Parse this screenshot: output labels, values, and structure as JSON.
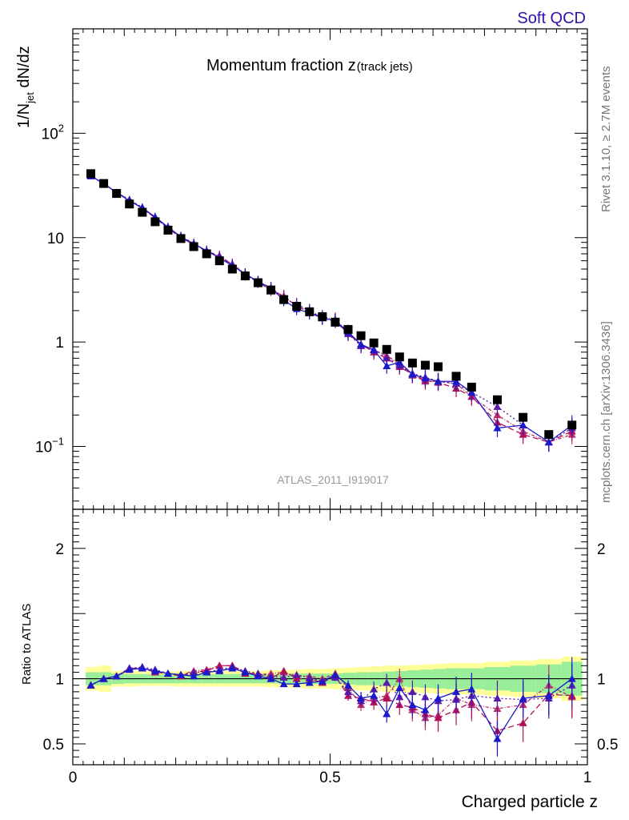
{
  "header": {
    "tag": "Soft QCD",
    "side_top": "Rivet 3.1.10, ≥ 2.7M events",
    "side_bottom": "mcplots.cern.ch [arXiv:1306.3436]",
    "analysis": "ATLAS_2011_I919017"
  },
  "colors": {
    "data": "#000000",
    "mc_blue": "#1a1acc",
    "mc_purple": "#5a1aa8",
    "mc_magenta": "#b0105a",
    "mc_pink": "#c0306a",
    "band_green": "#99ee99",
    "band_yellow": "#ffff99",
    "tag": "#3311aa"
  },
  "chart_data": [
    {
      "type": "scatter",
      "panel": "main",
      "title": "Momentum fraction z",
      "title_sub": "(track jets)",
      "ylabel_main": "1/N",
      "ylabel_sub": "jet",
      "ylabel_tail": " dN/dz",
      "yscale": "log",
      "ylim": [
        0.025,
        1000
      ],
      "xlim": [
        0,
        1
      ],
      "yticks": [
        {
          "value": 0.1,
          "base": "10",
          "exp": "−1"
        },
        {
          "value": 1,
          "base": "1",
          "exp": ""
        },
        {
          "value": 10,
          "base": "10",
          "exp": ""
        },
        {
          "value": 100,
          "base": "10",
          "exp": "2"
        }
      ],
      "x": [
        0.035,
        0.06,
        0.085,
        0.11,
        0.135,
        0.16,
        0.185,
        0.21,
        0.235,
        0.26,
        0.285,
        0.31,
        0.335,
        0.36,
        0.385,
        0.41,
        0.435,
        0.46,
        0.485,
        0.51,
        0.535,
        0.56,
        0.585,
        0.61,
        0.635,
        0.66,
        0.685,
        0.71,
        0.745,
        0.775,
        0.825,
        0.875,
        0.925,
        0.97
      ],
      "series": [
        {
          "name": "ATLAS",
          "color": "#000000",
          "marker": "square",
          "values": [
            41,
            33,
            26.5,
            21,
            17.5,
            14.2,
            11.8,
            9.8,
            8.2,
            7.0,
            6.0,
            5.0,
            4.3,
            3.7,
            3.15,
            2.55,
            2.2,
            1.95,
            1.75,
            1.55,
            1.32,
            1.15,
            0.98,
            0.85,
            0.72,
            0.63,
            0.6,
            0.58,
            0.47,
            0.37,
            0.28,
            0.19,
            0.13,
            0.16
          ]
        },
        {
          "name": "",
          "color": "#1a1acc",
          "marker": "triangle",
          "dash": "",
          "values": [
            39,
            33,
            27,
            22.5,
            19.3,
            15.8,
            12.6,
            10.2,
            8.7,
            7.5,
            6.4,
            5.4,
            4.5,
            3.78,
            3.3,
            2.52,
            2.08,
            1.9,
            1.7,
            1.6,
            1.25,
            0.95,
            0.84,
            0.59,
            0.64,
            0.49,
            0.45,
            0.42,
            0.42,
            0.33,
            0.15,
            0.16,
            0.11,
            0.16
          ]
        },
        {
          "name": "",
          "color": "#5a1aa8",
          "marker": "triangle",
          "dash": "2,3",
          "values": [
            39,
            33,
            27,
            23,
            19.5,
            15.5,
            12.3,
            10.3,
            8.8,
            7.4,
            6.5,
            5.5,
            4.4,
            3.75,
            3.2,
            2.6,
            2.3,
            2.0,
            1.7,
            1.6,
            1.2,
            0.92,
            0.85,
            0.71,
            0.6,
            0.5,
            0.46,
            0.42,
            0.4,
            0.33,
            0.24,
            0.16,
            0.11,
            0.15
          ]
        },
        {
          "name": "",
          "color": "#b0105a",
          "marker": "triangle",
          "dash": "7,4",
          "values": [
            39,
            33,
            27,
            23,
            19,
            15.5,
            12.3,
            10.0,
            8.6,
            7.4,
            6.7,
            5.5,
            4.4,
            3.75,
            3.15,
            2.75,
            2.2,
            1.95,
            1.7,
            1.6,
            1.2,
            0.95,
            0.8,
            0.7,
            0.58,
            0.49,
            0.43,
            0.41,
            0.36,
            0.3,
            0.17,
            0.13,
            0.11,
            0.14
          ]
        },
        {
          "name": "",
          "color": "#c0306a",
          "marker": "triangle",
          "dash": "4,2,1,2",
          "values": [
            39,
            33,
            27,
            23,
            19,
            15.5,
            12.3,
            10.2,
            8.8,
            7.5,
            6.6,
            5.6,
            4.5,
            3.8,
            3.3,
            2.7,
            2.25,
            2.0,
            1.75,
            1.65,
            1.25,
            0.92,
            0.84,
            0.74,
            0.62,
            0.48,
            0.42,
            0.42,
            0.4,
            0.3,
            0.2,
            0.14,
            0.11,
            0.13
          ]
        }
      ]
    },
    {
      "type": "scatter",
      "panel": "ratio",
      "ylabel": "Ratio to ATLAS",
      "xlabel": "Charged particle z",
      "ylim": [
        0.34,
        2.3
      ],
      "xlim": [
        0,
        1
      ],
      "yticks": [
        {
          "value": 0.5,
          "label": "0.5"
        },
        {
          "value": 1,
          "label": "1"
        },
        {
          "value": 2,
          "label": "2"
        }
      ],
      "xticks": [
        {
          "value": 0,
          "label": "0"
        },
        {
          "value": 0.5,
          "label": "0.5"
        },
        {
          "value": 1,
          "label": "1"
        }
      ],
      "x": [
        0.035,
        0.06,
        0.085,
        0.11,
        0.135,
        0.16,
        0.185,
        0.21,
        0.235,
        0.26,
        0.285,
        0.31,
        0.335,
        0.36,
        0.385,
        0.41,
        0.435,
        0.46,
        0.485,
        0.51,
        0.535,
        0.56,
        0.585,
        0.61,
        0.635,
        0.66,
        0.685,
        0.71,
        0.745,
        0.775,
        0.825,
        0.875,
        0.925,
        0.97
      ],
      "bands": {
        "x_edges": [
          0.025,
          0.05,
          0.075,
          0.1,
          0.125,
          0.15,
          0.175,
          0.2,
          0.225,
          0.25,
          0.275,
          0.3,
          0.325,
          0.35,
          0.375,
          0.4,
          0.425,
          0.45,
          0.475,
          0.5,
          0.525,
          0.55,
          0.575,
          0.6,
          0.625,
          0.65,
          0.675,
          0.7,
          0.725,
          0.75,
          0.8,
          0.85,
          0.9,
          0.95,
          0.99
        ],
        "green": [
          0.05,
          0.05,
          0.04,
          0.035,
          0.035,
          0.035,
          0.035,
          0.035,
          0.035,
          0.035,
          0.035,
          0.035,
          0.035,
          0.035,
          0.035,
          0.04,
          0.04,
          0.04,
          0.04,
          0.04,
          0.045,
          0.05,
          0.05,
          0.055,
          0.06,
          0.065,
          0.07,
          0.075,
          0.08,
          0.08,
          0.09,
          0.1,
          0.11,
          0.13
        ],
        "yellow": [
          0.09,
          0.1,
          0.06,
          0.06,
          0.055,
          0.055,
          0.055,
          0.06,
          0.06,
          0.06,
          0.06,
          0.06,
          0.06,
          0.06,
          0.065,
          0.065,
          0.07,
          0.075,
          0.075,
          0.08,
          0.085,
          0.09,
          0.095,
          0.1,
          0.1,
          0.105,
          0.11,
          0.115,
          0.12,
          0.12,
          0.13,
          0.14,
          0.15,
          0.17
        ]
      },
      "series": [
        {
          "name": "",
          "color": "#1a1acc",
          "dash": "",
          "values": [
            0.95,
            1.0,
            1.02,
            1.07,
            1.08,
            1.06,
            1.04,
            1.03,
            1.02,
            1.05,
            1.06,
            1.08,
            1.05,
            1.02,
            1.0,
            0.96,
            0.96,
            0.97,
            0.98,
            1.03,
            0.95,
            0.85,
            0.87,
            0.73,
            0.93,
            0.8,
            0.76,
            0.85,
            0.9,
            0.92,
            0.54,
            0.85,
            0.87,
            1.0
          ]
        },
        {
          "name": "",
          "color": "#5a1aa8",
          "dash": "2,3",
          "values": [
            0.95,
            1.0,
            1.02,
            1.08,
            1.09,
            1.07,
            1.04,
            1.03,
            1.05,
            1.05,
            1.07,
            1.09,
            1.06,
            1.04,
            1.02,
            1.01,
            1.03,
            1.01,
            0.98,
            1.01,
            0.9,
            0.83,
            0.92,
            0.97,
            0.86,
            0.9,
            0.86,
            0.83,
            0.84,
            0.87,
            0.85,
            0.84,
            0.85,
            0.95
          ]
        },
        {
          "name": "",
          "color": "#b0105a",
          "dash": "7,4",
          "values": [
            0.95,
            1.0,
            1.02,
            1.08,
            1.08,
            1.05,
            1.04,
            1.02,
            1.05,
            1.06,
            1.1,
            1.1,
            1.04,
            1.04,
            1.0,
            1.06,
            1.0,
            1.0,
            0.97,
            1.02,
            0.87,
            0.85,
            0.82,
            0.85,
            0.8,
            0.78,
            0.73,
            0.7,
            0.76,
            0.82,
            0.6,
            0.66,
            0.88,
            0.87
          ]
        },
        {
          "name": "",
          "color": "#c0306a",
          "dash": "4,2,1,2",
          "values": [
            0.95,
            1.0,
            1.02,
            1.08,
            1.08,
            1.06,
            1.04,
            1.03,
            1.06,
            1.07,
            1.1,
            1.1,
            1.05,
            1.03,
            1.04,
            1.05,
            1.02,
            1.02,
            1.0,
            1.04,
            0.93,
            0.8,
            0.85,
            0.87,
            1.0,
            0.76,
            0.7,
            0.72,
            0.85,
            0.8,
            0.77,
            0.8,
            0.95,
            0.86
          ]
        }
      ]
    }
  ]
}
